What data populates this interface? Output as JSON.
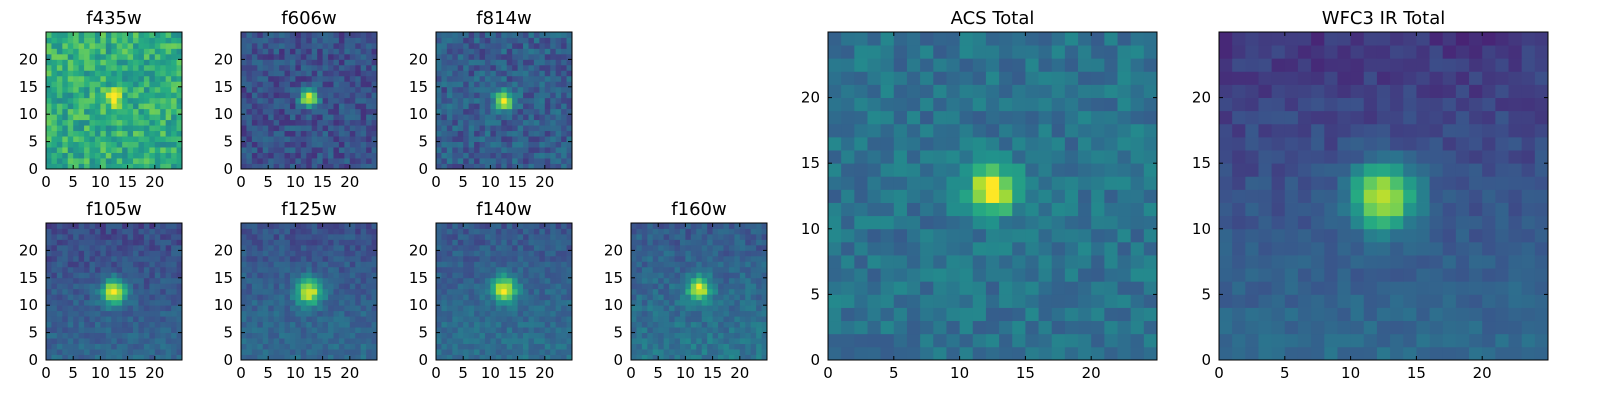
{
  "chart_data": {
    "type": "heatmap",
    "colormap": "viridis",
    "colors": {
      "background": "#440154",
      "low": "#3b528b",
      "mid": "#21918c",
      "high": "#5ec962",
      "peak": "#fde725"
    },
    "panels": [
      {
        "id": "f435w",
        "title": "f435w",
        "grid_size": 25,
        "xlim": [
          0,
          25
        ],
        "ylim": [
          0,
          25
        ],
        "xticks": [
          0,
          5,
          10,
          15,
          20
        ],
        "yticks": [
          0,
          5,
          10,
          15,
          20
        ],
        "source_center": [
          12.0,
          12.5
        ],
        "source_sigma": 1.2,
        "source_peak": 0.35,
        "background_level": 0.62,
        "noise": 0.16,
        "gradient": 0.0,
        "seed": 11
      },
      {
        "id": "f606w",
        "title": "f606w",
        "grid_size": 25,
        "xlim": [
          0,
          25
        ],
        "ylim": [
          0,
          25
        ],
        "xticks": [
          0,
          5,
          10,
          15,
          20
        ],
        "yticks": [
          0,
          5,
          10,
          15,
          20
        ],
        "source_center": [
          12.0,
          12.5
        ],
        "source_sigma": 1.1,
        "source_peak": 0.75,
        "background_level": 0.26,
        "noise": 0.1,
        "gradient": 0.0,
        "seed": 23
      },
      {
        "id": "f814w",
        "title": "f814w",
        "grid_size": 25,
        "xlim": [
          0,
          25
        ],
        "ylim": [
          0,
          25
        ],
        "xticks": [
          0,
          5,
          10,
          15,
          20
        ],
        "yticks": [
          0,
          5,
          10,
          15,
          20
        ],
        "source_center": [
          12.0,
          12.0
        ],
        "source_sigma": 1.2,
        "source_peak": 0.72,
        "background_level": 0.3,
        "noise": 0.11,
        "gradient": 0.0,
        "seed": 37
      },
      {
        "id": "f105w",
        "title": "f105w",
        "grid_size": 25,
        "xlim": [
          0,
          25
        ],
        "ylim": [
          0,
          25
        ],
        "xticks": [
          0,
          5,
          10,
          15,
          20
        ],
        "yticks": [
          0,
          5,
          10,
          15,
          20
        ],
        "source_center": [
          12.0,
          12.0
        ],
        "source_sigma": 1.6,
        "source_peak": 0.7,
        "background_level": 0.28,
        "noise": 0.07,
        "gradient": 0.1,
        "seed": 41
      },
      {
        "id": "f125w",
        "title": "f125w",
        "grid_size": 25,
        "xlim": [
          0,
          25
        ],
        "ylim": [
          0,
          25
        ],
        "xticks": [
          0,
          5,
          10,
          15,
          20
        ],
        "yticks": [
          0,
          5,
          10,
          15,
          20
        ],
        "source_center": [
          12.0,
          12.0
        ],
        "source_sigma": 1.6,
        "source_peak": 0.68,
        "background_level": 0.3,
        "noise": 0.07,
        "gradient": 0.1,
        "seed": 53
      },
      {
        "id": "f140w",
        "title": "f140w",
        "grid_size": 25,
        "xlim": [
          0,
          25
        ],
        "ylim": [
          0,
          25
        ],
        "xticks": [
          0,
          5,
          10,
          15,
          20
        ],
        "yticks": [
          0,
          5,
          10,
          15,
          20
        ],
        "source_center": [
          12.0,
          12.5
        ],
        "source_sigma": 1.6,
        "source_peak": 0.66,
        "background_level": 0.32,
        "noise": 0.07,
        "gradient": 0.1,
        "seed": 67
      },
      {
        "id": "f160w",
        "title": "f160w",
        "grid_size": 25,
        "xlim": [
          0,
          25
        ],
        "ylim": [
          0,
          25
        ],
        "xticks": [
          0,
          5,
          10,
          15,
          20
        ],
        "yticks": [
          0,
          5,
          10,
          15,
          20
        ],
        "source_center": [
          12.0,
          12.5
        ],
        "source_sigma": 1.5,
        "source_peak": 0.62,
        "background_level": 0.34,
        "noise": 0.08,
        "gradient": 0.12,
        "seed": 79
      },
      {
        "id": "acs_total",
        "title": "ACS Total",
        "grid_size": 25,
        "xlim": [
          0,
          25
        ],
        "ylim": [
          0,
          25
        ],
        "xticks": [
          0,
          5,
          10,
          15,
          20
        ],
        "yticks": [
          0,
          5,
          10,
          15,
          20
        ],
        "source_center": [
          12.0,
          12.5
        ],
        "source_sigma": 1.3,
        "source_peak": 0.65,
        "background_level": 0.38,
        "noise": 0.09,
        "gradient": 0.0,
        "seed": 97
      },
      {
        "id": "wfc3_ir_total",
        "title": "WFC3 IR Total",
        "grid_size": 25,
        "xlim": [
          0,
          25
        ],
        "ylim": [
          0,
          25
        ],
        "xticks": [
          0,
          5,
          10,
          15,
          20
        ],
        "yticks": [
          0,
          5,
          10,
          15,
          20
        ],
        "source_center": [
          12.0,
          12.0
        ],
        "source_sigma": 1.7,
        "source_peak": 0.68,
        "background_level": 0.26,
        "noise": 0.05,
        "gradient": 0.18,
        "seed": 113
      }
    ]
  }
}
